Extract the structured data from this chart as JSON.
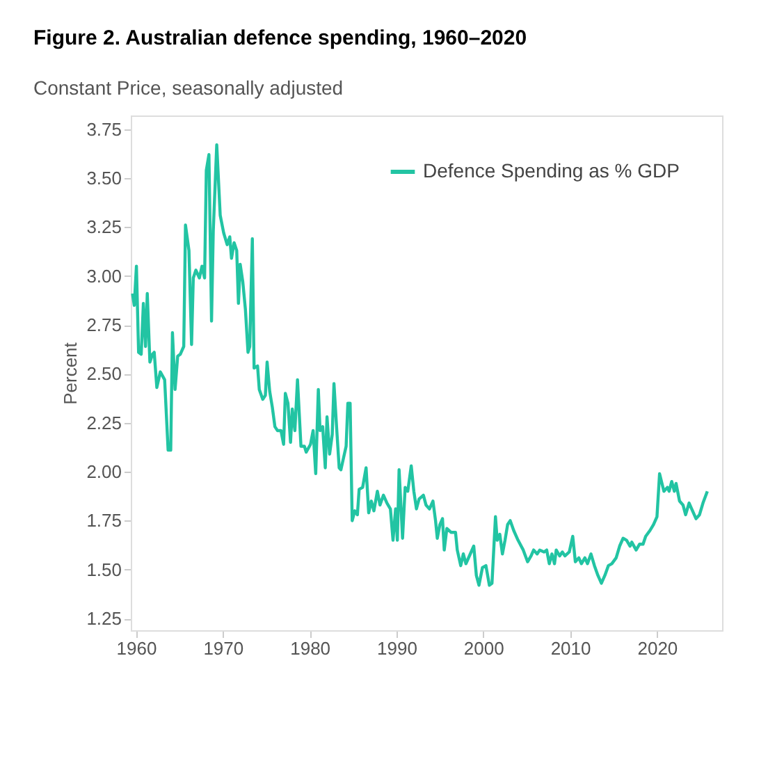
{
  "chart_data": {
    "type": "line",
    "title": "Figure 2. Australian defence spending, 1960–2020",
    "subtitle": "Constant Price, seasonally adjusted",
    "ylabel": "Percent",
    "x": [
      1959.6,
      1959.8,
      1960.05,
      1960.3,
      1960.6,
      1960.85,
      1961.1,
      1961.3,
      1961.6,
      1961.9,
      1962.1,
      1962.4,
      1962.8,
      1963.3,
      1963.7,
      1964.0,
      1964.2,
      1964.5,
      1964.8,
      1965.1,
      1965.5,
      1965.7,
      1966.1,
      1966.4,
      1966.6,
      1966.9,
      1967.3,
      1967.6,
      1967.9,
      1968.1,
      1968.4,
      1968.7,
      1968.9,
      1969.3,
      1969.7,
      1970.1,
      1970.5,
      1970.8,
      1971.0,
      1971.3,
      1971.6,
      1971.8,
      1972.0,
      1972.3,
      1972.6,
      1972.9,
      1973.1,
      1973.4,
      1973.6,
      1974.0,
      1974.2,
      1974.6,
      1974.9,
      1975.1,
      1975.4,
      1975.7,
      1976.0,
      1976.3,
      1976.7,
      1977.0,
      1977.2,
      1977.5,
      1977.8,
      1978.0,
      1978.3,
      1978.6,
      1979.0,
      1979.4,
      1979.6,
      1980.1,
      1980.4,
      1980.7,
      1981.0,
      1981.2,
      1981.5,
      1981.8,
      1982.0,
      1982.3,
      1982.6,
      1982.8,
      1983.1,
      1983.4,
      1983.6,
      1983.9,
      1984.2,
      1984.4,
      1984.66,
      1984.9,
      1985.2,
      1985.5,
      1985.7,
      1986.1,
      1986.5,
      1986.8,
      1987.1,
      1987.4,
      1987.8,
      1988.1,
      1988.5,
      1988.9,
      1989.3,
      1989.6,
      1989.9,
      1990.1,
      1990.3,
      1990.7,
      1991.0,
      1991.3,
      1991.7,
      1992.0,
      1992.3,
      1992.6,
      1993.1,
      1993.4,
      1993.8,
      1994.2,
      1994.5,
      1994.7,
      1995.0,
      1995.3,
      1995.5,
      1995.8,
      1996.3,
      1996.8,
      1997.0,
      1997.4,
      1997.7,
      1998.0,
      1998.5,
      1998.9,
      1999.2,
      1999.5,
      1999.9,
      2000.3,
      2000.7,
      2001.0,
      2001.4,
      2001.6,
      2001.9,
      2002.2,
      2002.5,
      2002.8,
      2003.1,
      2003.5,
      2004.0,
      2004.6,
      2005.1,
      2005.5,
      2005.8,
      2006.2,
      2006.5,
      2007.0,
      2007.3,
      2007.6,
      2007.9,
      2008.2,
      2008.4,
      2008.8,
      2009.1,
      2009.4,
      2009.9,
      2010.3,
      2010.6,
      2011.0,
      2011.3,
      2011.7,
      2012.0,
      2012.4,
      2012.8,
      2013.2,
      2013.6,
      2014.0,
      2014.4,
      2014.8,
      2015.3,
      2015.7,
      2016.1,
      2016.5,
      2016.9,
      2017.1,
      2017.6,
      2018.0,
      2018.4,
      2018.7,
      2019.2,
      2019.6,
      2020.0,
      2020.3,
      2020.8,
      2021.2,
      2021.4,
      2021.7,
      2022.0,
      2022.2,
      2022.6,
      2023.0,
      2023.3,
      2023.7,
      2024.0,
      2024.5,
      2024.9,
      2025.3,
      2025.8
    ],
    "series": [
      {
        "name": "Defence Spending as % GDP",
        "color": "#22c4a3",
        "values": [
          2.91,
          2.85,
          3.05,
          2.61,
          2.6,
          2.86,
          2.64,
          2.91,
          2.56,
          2.6,
          2.61,
          2.43,
          2.51,
          2.47,
          2.11,
          2.11,
          2.71,
          2.42,
          2.59,
          2.6,
          2.64,
          3.26,
          3.13,
          2.65,
          2.99,
          3.03,
          2.99,
          3.05,
          2.99,
          3.54,
          3.62,
          2.77,
          3.23,
          3.67,
          3.31,
          3.22,
          3.16,
          3.2,
          3.09,
          3.17,
          3.13,
          2.86,
          3.06,
          2.97,
          2.83,
          2.61,
          2.64,
          3.19,
          2.53,
          2.54,
          2.42,
          2.37,
          2.39,
          2.56,
          2.41,
          2.33,
          2.23,
          2.21,
          2.21,
          2.14,
          2.4,
          2.35,
          2.15,
          2.32,
          2.21,
          2.47,
          2.13,
          2.13,
          2.1,
          2.14,
          2.21,
          1.99,
          2.42,
          2.21,
          2.23,
          2.02,
          2.28,
          2.09,
          2.19,
          2.45,
          2.23,
          2.02,
          2.01,
          2.07,
          2.13,
          2.35,
          2.35,
          1.75,
          1.8,
          1.78,
          1.91,
          1.92,
          2.02,
          1.79,
          1.85,
          1.8,
          1.9,
          1.83,
          1.88,
          1.84,
          1.81,
          1.65,
          1.81,
          1.65,
          2.01,
          1.66,
          1.92,
          1.9,
          2.03,
          1.9,
          1.81,
          1.86,
          1.88,
          1.83,
          1.81,
          1.85,
          1.75,
          1.66,
          1.73,
          1.76,
          1.6,
          1.71,
          1.69,
          1.69,
          1.6,
          1.52,
          1.58,
          1.53,
          1.58,
          1.62,
          1.47,
          1.42,
          1.51,
          1.52,
          1.42,
          1.43,
          1.77,
          1.65,
          1.68,
          1.58,
          1.65,
          1.73,
          1.75,
          1.7,
          1.65,
          1.6,
          1.54,
          1.57,
          1.6,
          1.58,
          1.6,
          1.59,
          1.6,
          1.53,
          1.58,
          1.53,
          1.6,
          1.57,
          1.59,
          1.57,
          1.59,
          1.67,
          1.54,
          1.56,
          1.53,
          1.56,
          1.53,
          1.58,
          1.52,
          1.47,
          1.43,
          1.47,
          1.52,
          1.53,
          1.56,
          1.62,
          1.66,
          1.65,
          1.62,
          1.64,
          1.6,
          1.63,
          1.63,
          1.67,
          1.7,
          1.73,
          1.77,
          1.99,
          1.9,
          1.92,
          1.9,
          1.95,
          1.9,
          1.94,
          1.85,
          1.83,
          1.78,
          1.84,
          1.81,
          1.76,
          1.78,
          1.84,
          1.9
        ]
      }
    ],
    "xlim": [
      1959.4,
      2027.5
    ],
    "xticks": [
      1960,
      1970,
      1980,
      1990,
      2000,
      2010,
      2020
    ],
    "ylim": [
      1.19,
      3.82
    ],
    "yticks": [
      1.25,
      {
        "value": 1.5,
        "label": "1.50"
      },
      1.75,
      {
        "value": 2,
        "label": "2.00"
      },
      2.25,
      {
        "value": 2.5,
        "label": "2.50"
      },
      2.75,
      {
        "value": 3,
        "label": "3.00"
      },
      3.25,
      {
        "value": 3.5,
        "label": "3.50"
      },
      3.75
    ],
    "grid": false,
    "legend": "top right",
    "line_style": "solid",
    "marker": "none"
  }
}
